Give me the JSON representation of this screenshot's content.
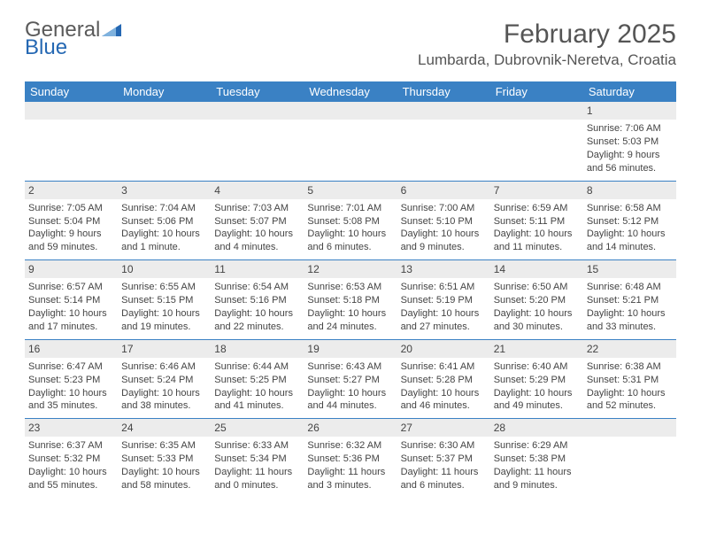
{
  "brand": {
    "part1": "General",
    "part2": "Blue"
  },
  "title": "February 2025",
  "location": "Lumbarda, Dubrovnik-Neretva, Croatia",
  "colors": {
    "header_bg": "#3a81c4",
    "header_text": "#ffffff",
    "daynum_bg": "#ececec",
    "border": "#3a81c4",
    "text": "#444444",
    "brand_gray": "#5a5a5a",
    "brand_blue": "#2568b3"
  },
  "day_headers": [
    "Sunday",
    "Monday",
    "Tuesday",
    "Wednesday",
    "Thursday",
    "Friday",
    "Saturday"
  ],
  "weeks": [
    [
      null,
      null,
      null,
      null,
      null,
      null,
      {
        "n": "1",
        "sunrise": "Sunrise: 7:06 AM",
        "sunset": "Sunset: 5:03 PM",
        "day1": "Daylight: 9 hours",
        "day2": "and 56 minutes."
      }
    ],
    [
      {
        "n": "2",
        "sunrise": "Sunrise: 7:05 AM",
        "sunset": "Sunset: 5:04 PM",
        "day1": "Daylight: 9 hours",
        "day2": "and 59 minutes."
      },
      {
        "n": "3",
        "sunrise": "Sunrise: 7:04 AM",
        "sunset": "Sunset: 5:06 PM",
        "day1": "Daylight: 10 hours",
        "day2": "and 1 minute."
      },
      {
        "n": "4",
        "sunrise": "Sunrise: 7:03 AM",
        "sunset": "Sunset: 5:07 PM",
        "day1": "Daylight: 10 hours",
        "day2": "and 4 minutes."
      },
      {
        "n": "5",
        "sunrise": "Sunrise: 7:01 AM",
        "sunset": "Sunset: 5:08 PM",
        "day1": "Daylight: 10 hours",
        "day2": "and 6 minutes."
      },
      {
        "n": "6",
        "sunrise": "Sunrise: 7:00 AM",
        "sunset": "Sunset: 5:10 PM",
        "day1": "Daylight: 10 hours",
        "day2": "and 9 minutes."
      },
      {
        "n": "7",
        "sunrise": "Sunrise: 6:59 AM",
        "sunset": "Sunset: 5:11 PM",
        "day1": "Daylight: 10 hours",
        "day2": "and 11 minutes."
      },
      {
        "n": "8",
        "sunrise": "Sunrise: 6:58 AM",
        "sunset": "Sunset: 5:12 PM",
        "day1": "Daylight: 10 hours",
        "day2": "and 14 minutes."
      }
    ],
    [
      {
        "n": "9",
        "sunrise": "Sunrise: 6:57 AM",
        "sunset": "Sunset: 5:14 PM",
        "day1": "Daylight: 10 hours",
        "day2": "and 17 minutes."
      },
      {
        "n": "10",
        "sunrise": "Sunrise: 6:55 AM",
        "sunset": "Sunset: 5:15 PM",
        "day1": "Daylight: 10 hours",
        "day2": "and 19 minutes."
      },
      {
        "n": "11",
        "sunrise": "Sunrise: 6:54 AM",
        "sunset": "Sunset: 5:16 PM",
        "day1": "Daylight: 10 hours",
        "day2": "and 22 minutes."
      },
      {
        "n": "12",
        "sunrise": "Sunrise: 6:53 AM",
        "sunset": "Sunset: 5:18 PM",
        "day1": "Daylight: 10 hours",
        "day2": "and 24 minutes."
      },
      {
        "n": "13",
        "sunrise": "Sunrise: 6:51 AM",
        "sunset": "Sunset: 5:19 PM",
        "day1": "Daylight: 10 hours",
        "day2": "and 27 minutes."
      },
      {
        "n": "14",
        "sunrise": "Sunrise: 6:50 AM",
        "sunset": "Sunset: 5:20 PM",
        "day1": "Daylight: 10 hours",
        "day2": "and 30 minutes."
      },
      {
        "n": "15",
        "sunrise": "Sunrise: 6:48 AM",
        "sunset": "Sunset: 5:21 PM",
        "day1": "Daylight: 10 hours",
        "day2": "and 33 minutes."
      }
    ],
    [
      {
        "n": "16",
        "sunrise": "Sunrise: 6:47 AM",
        "sunset": "Sunset: 5:23 PM",
        "day1": "Daylight: 10 hours",
        "day2": "and 35 minutes."
      },
      {
        "n": "17",
        "sunrise": "Sunrise: 6:46 AM",
        "sunset": "Sunset: 5:24 PM",
        "day1": "Daylight: 10 hours",
        "day2": "and 38 minutes."
      },
      {
        "n": "18",
        "sunrise": "Sunrise: 6:44 AM",
        "sunset": "Sunset: 5:25 PM",
        "day1": "Daylight: 10 hours",
        "day2": "and 41 minutes."
      },
      {
        "n": "19",
        "sunrise": "Sunrise: 6:43 AM",
        "sunset": "Sunset: 5:27 PM",
        "day1": "Daylight: 10 hours",
        "day2": "and 44 minutes."
      },
      {
        "n": "20",
        "sunrise": "Sunrise: 6:41 AM",
        "sunset": "Sunset: 5:28 PM",
        "day1": "Daylight: 10 hours",
        "day2": "and 46 minutes."
      },
      {
        "n": "21",
        "sunrise": "Sunrise: 6:40 AM",
        "sunset": "Sunset: 5:29 PM",
        "day1": "Daylight: 10 hours",
        "day2": "and 49 minutes."
      },
      {
        "n": "22",
        "sunrise": "Sunrise: 6:38 AM",
        "sunset": "Sunset: 5:31 PM",
        "day1": "Daylight: 10 hours",
        "day2": "and 52 minutes."
      }
    ],
    [
      {
        "n": "23",
        "sunrise": "Sunrise: 6:37 AM",
        "sunset": "Sunset: 5:32 PM",
        "day1": "Daylight: 10 hours",
        "day2": "and 55 minutes."
      },
      {
        "n": "24",
        "sunrise": "Sunrise: 6:35 AM",
        "sunset": "Sunset: 5:33 PM",
        "day1": "Daylight: 10 hours",
        "day2": "and 58 minutes."
      },
      {
        "n": "25",
        "sunrise": "Sunrise: 6:33 AM",
        "sunset": "Sunset: 5:34 PM",
        "day1": "Daylight: 11 hours",
        "day2": "and 0 minutes."
      },
      {
        "n": "26",
        "sunrise": "Sunrise: 6:32 AM",
        "sunset": "Sunset: 5:36 PM",
        "day1": "Daylight: 11 hours",
        "day2": "and 3 minutes."
      },
      {
        "n": "27",
        "sunrise": "Sunrise: 6:30 AM",
        "sunset": "Sunset: 5:37 PM",
        "day1": "Daylight: 11 hours",
        "day2": "and 6 minutes."
      },
      {
        "n": "28",
        "sunrise": "Sunrise: 6:29 AM",
        "sunset": "Sunset: 5:38 PM",
        "day1": "Daylight: 11 hours",
        "day2": "and 9 minutes."
      },
      null
    ]
  ]
}
